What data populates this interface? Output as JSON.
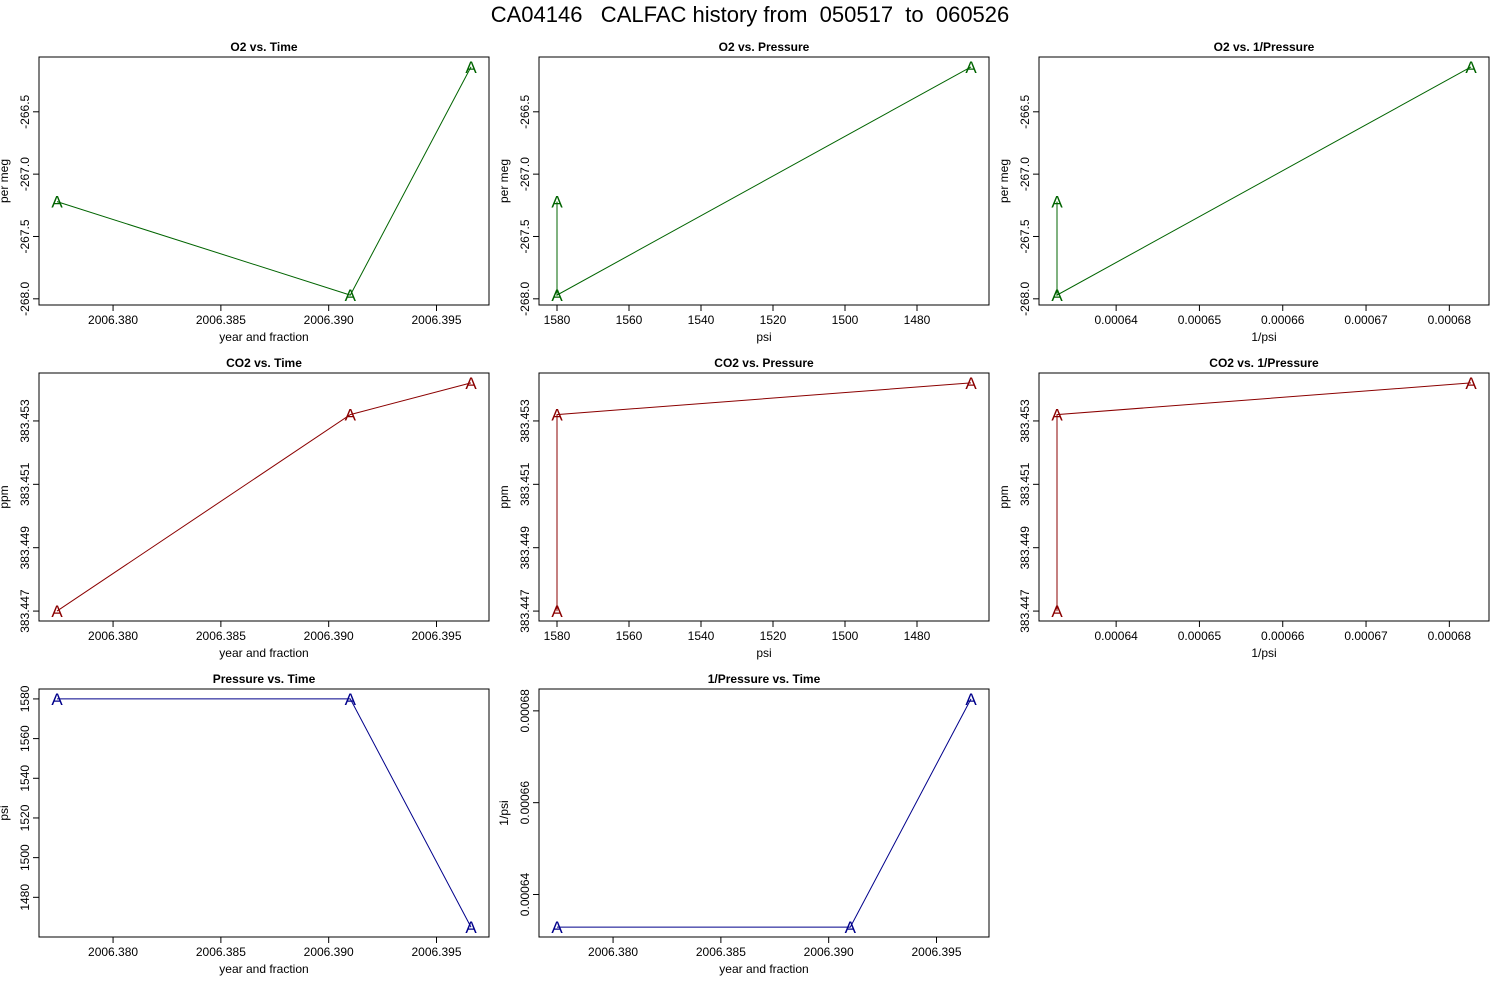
{
  "title": "CA04146   CALFAC history from  050517  to  060526",
  "colors": {
    "o2": "#006400",
    "co2": "#8B0000",
    "pressure": "#00008B"
  },
  "chart_data": [
    {
      "type": "line",
      "title": "O2 vs. Time",
      "xlabel": "year and fraction",
      "ylabel": "per meg",
      "color": "#006400",
      "marker": "A",
      "x": [
        2006.3774,
        2006.391,
        2006.3966
      ],
      "y": [
        -267.22,
        -267.97,
        -266.14
      ],
      "xlim": [
        2006.3774,
        2006.3966
      ],
      "ylim": [
        -267.97,
        -266.14
      ],
      "xticks": [
        2006.38,
        2006.385,
        2006.39,
        2006.395
      ],
      "xticklabels": [
        "2006.380",
        "2006.385",
        "2006.390",
        "2006.395"
      ],
      "yticks": [
        -268.0,
        -267.5,
        -267.0,
        -266.5
      ],
      "yticklabels": [
        "-268.0",
        "-267.5",
        "-267.0",
        "-266.5"
      ]
    },
    {
      "type": "line",
      "title": "O2 vs. Pressure",
      "xlabel": "psi",
      "ylabel": "per meg",
      "color": "#006400",
      "marker": "A",
      "x": [
        1580,
        1580,
        1465
      ],
      "y": [
        -267.22,
        -267.97,
        -266.14
      ],
      "xlim": [
        1580,
        1465
      ],
      "ylim": [
        -267.97,
        -266.14
      ],
      "xticks": [
        1580,
        1560,
        1540,
        1520,
        1500,
        1480
      ],
      "xticklabels": [
        "1580",
        "1560",
        "1540",
        "1520",
        "1500",
        "1480"
      ],
      "yticks": [
        -268.0,
        -267.5,
        -267.0,
        -266.5
      ],
      "yticklabels": [
        "-268.0",
        "-267.5",
        "-267.0",
        "-266.5"
      ]
    },
    {
      "type": "line",
      "title": "O2 vs. 1/Pressure",
      "xlabel": "1/psi",
      "ylabel": "per meg",
      "color": "#006400",
      "marker": "A",
      "x": [
        0.0006329,
        0.0006329,
        0.0006826
      ],
      "y": [
        -267.22,
        -267.97,
        -266.14
      ],
      "xlim": [
        0.0006329,
        0.0006826
      ],
      "ylim": [
        -267.97,
        -266.14
      ],
      "xticks": [
        0.00064,
        0.00065,
        0.00066,
        0.00067,
        0.00068
      ],
      "xticklabels": [
        "0.00064",
        "0.00065",
        "0.00066",
        "0.00067",
        "0.00068"
      ],
      "yticks": [
        -268.0,
        -267.5,
        -267.0,
        -266.5
      ],
      "yticklabels": [
        "-268.0",
        "-267.5",
        "-267.0",
        "-266.5"
      ]
    },
    {
      "type": "line",
      "title": "CO2 vs. Time",
      "xlabel": "year and fraction",
      "ylabel": "ppm",
      "color": "#8B0000",
      "marker": "A",
      "x": [
        2006.3774,
        2006.391,
        2006.3966
      ],
      "y": [
        383.447,
        383.4532,
        383.4542
      ],
      "xlim": [
        2006.3774,
        2006.3966
      ],
      "ylim": [
        383.447,
        383.4542
      ],
      "xticks": [
        2006.38,
        2006.385,
        2006.39,
        2006.395
      ],
      "xticklabels": [
        "2006.380",
        "2006.385",
        "2006.390",
        "2006.395"
      ],
      "yticks": [
        383.447,
        383.449,
        383.451,
        383.453
      ],
      "yticklabels": [
        "383.447",
        "383.449",
        "383.451",
        "383.453"
      ]
    },
    {
      "type": "line",
      "title": "CO2 vs. Pressure",
      "xlabel": "psi",
      "ylabel": "ppm",
      "color": "#8B0000",
      "marker": "A",
      "x": [
        1580,
        1580,
        1465
      ],
      "y": [
        383.447,
        383.4532,
        383.4542
      ],
      "xlim": [
        1580,
        1465
      ],
      "ylim": [
        383.447,
        383.4542
      ],
      "xticks": [
        1580,
        1560,
        1540,
        1520,
        1500,
        1480
      ],
      "xticklabels": [
        "1580",
        "1560",
        "1540",
        "1520",
        "1500",
        "1480"
      ],
      "yticks": [
        383.447,
        383.449,
        383.451,
        383.453
      ],
      "yticklabels": [
        "383.447",
        "383.449",
        "383.451",
        "383.453"
      ]
    },
    {
      "type": "line",
      "title": "CO2 vs. 1/Pressure",
      "xlabel": "1/psi",
      "ylabel": "ppm",
      "color": "#8B0000",
      "marker": "A",
      "x": [
        0.0006329,
        0.0006329,
        0.0006826
      ],
      "y": [
        383.447,
        383.4532,
        383.4542
      ],
      "xlim": [
        0.0006329,
        0.0006826
      ],
      "ylim": [
        383.447,
        383.4542
      ],
      "xticks": [
        0.00064,
        0.00065,
        0.00066,
        0.00067,
        0.00068
      ],
      "xticklabels": [
        "0.00064",
        "0.00065",
        "0.00066",
        "0.00067",
        "0.00068"
      ],
      "yticks": [
        383.447,
        383.449,
        383.451,
        383.453
      ],
      "yticklabels": [
        "383.447",
        "383.449",
        "383.451",
        "383.453"
      ]
    },
    {
      "type": "line",
      "title": "Pressure vs. Time",
      "xlabel": "year and fraction",
      "ylabel": "psi",
      "color": "#00008B",
      "marker": "A",
      "x": [
        2006.3774,
        2006.391,
        2006.3966
      ],
      "y": [
        1580,
        1580,
        1465
      ],
      "xlim": [
        2006.3774,
        2006.3966
      ],
      "ylim": [
        1465,
        1580
      ],
      "xticks": [
        2006.38,
        2006.385,
        2006.39,
        2006.395
      ],
      "xticklabels": [
        "2006.380",
        "2006.385",
        "2006.390",
        "2006.395"
      ],
      "yticks": [
        1480,
        1500,
        1520,
        1540,
        1560,
        1580
      ],
      "yticklabels": [
        "1480",
        "1500",
        "1520",
        "1540",
        "1560",
        "1580"
      ]
    },
    {
      "type": "line",
      "title": "1/Pressure vs. Time",
      "xlabel": "year and fraction",
      "ylabel": "1/psi",
      "color": "#00008B",
      "marker": "A",
      "x": [
        2006.3774,
        2006.391,
        2006.3966
      ],
      "y": [
        0.0006329,
        0.0006329,
        0.0006826
      ],
      "xlim": [
        2006.3774,
        2006.3966
      ],
      "ylim": [
        0.0006329,
        0.0006826
      ],
      "xticks": [
        2006.38,
        2006.385,
        2006.39,
        2006.395
      ],
      "xticklabels": [
        "2006.380",
        "2006.385",
        "2006.390",
        "2006.395"
      ],
      "yticks": [
        0.00064,
        0.00066,
        0.00068
      ],
      "yticklabels": [
        "0.00064",
        "0.00066",
        "0.00068"
      ]
    }
  ]
}
